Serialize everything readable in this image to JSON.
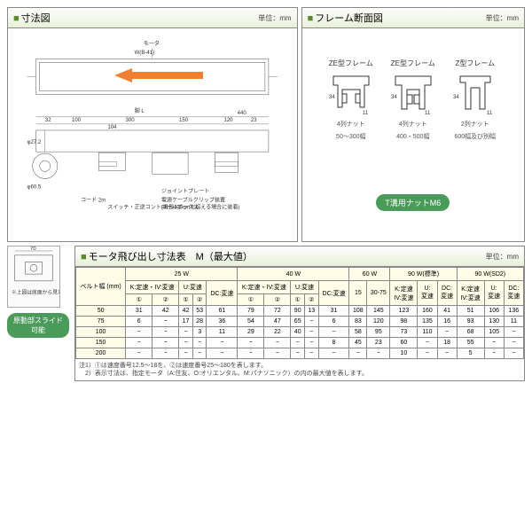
{
  "sections": {
    "dimension": {
      "title": "寸法図",
      "unit": "単位：mm"
    },
    "frame": {
      "title": "フレーム断面図",
      "unit": "単位：mm"
    },
    "motor": {
      "title": "モータ飛び出し寸法表　M（最大値）",
      "unit": "単位：mm"
    }
  },
  "frames": [
    {
      "name": "ZE型フレーム",
      "range": "50～300幅",
      "nut": "4列ナット"
    },
    {
      "name": "ZE型フレーム",
      "range": "400・500幅",
      "nut": "4列ナット"
    },
    {
      "name": "Z型フレーム",
      "range": "600幅及び別幅",
      "nut": "2列ナット"
    }
  ],
  "t_nut": "T溝用ナットM6",
  "slide_badge": "原動部スライド可能",
  "dim_labels": {
    "motor": "モータ",
    "w1": "W(B-41)",
    "l": "脚 L",
    "d": "φ27.2",
    "d2": "φ60.5"
  },
  "dim_numbers": [
    "32",
    "100",
    "300",
    "150",
    "120",
    "23",
    "29",
    "104",
    "440",
    "18",
    "49",
    "9.5",
    "19",
    "40",
    "150"
  ],
  "table": {
    "belt_header": "ベルト幅\n(mm)",
    "power_groups": [
      "25 W",
      "40 W",
      "60 W",
      "90 W(標準)",
      "90 W(SD2)"
    ],
    "sub_headers_a": [
      "K:定速・IV:変速",
      "U:変速",
      "DC:変速"
    ],
    "sub_headers_b": [
      "①",
      "②",
      "①",
      "②"
    ],
    "rows": [
      {
        "belt": "50",
        "cells": [
          "31",
          "42",
          "42",
          "53",
          "61",
          "79",
          "72",
          "90",
          "13",
          "31",
          "108",
          "145",
          "123",
          "160",
          "41",
          "51",
          "106",
          "136"
        ]
      },
      {
        "belt": "75",
        "cells": [
          "6",
          "−",
          "17",
          "28",
          "36",
          "54",
          "47",
          "65",
          "−",
          "6",
          "83",
          "120",
          "98",
          "135",
          "16",
          "93",
          "130",
          "11"
        ]
      },
      {
        "belt": "100",
        "cells": [
          "−",
          "−",
          "−",
          "3",
          "11",
          "29",
          "22",
          "40",
          "−",
          "−",
          "58",
          "95",
          "73",
          "110",
          "−",
          "68",
          "105",
          "−"
        ]
      },
      {
        "belt": "150",
        "cells": [
          "−",
          "−",
          "−",
          "−",
          "−",
          "−",
          "−",
          "−",
          "−",
          "8",
          "45",
          "23",
          "60",
          "−",
          "18",
          "55",
          "−",
          "−"
        ]
      },
      {
        "belt": "200",
        "cells": [
          "−",
          "−",
          "−",
          "−",
          "−",
          "−",
          "−",
          "−",
          "−",
          "−",
          "−",
          "−",
          "10",
          "−",
          "−",
          "5",
          "−",
          "−"
        ]
      }
    ]
  },
  "note": "注1）①は速度番号12.5〜18を、②は速度番号25〜180を表します。\n　2）表示寸法は、指定モータ（A:住友、O:オリエンタル、M:パナソニック）の内の最大値を表します。",
  "colors": {
    "accent": "#5a8a2a",
    "badge": "#4a9b5a",
    "arrow": "#f08030",
    "header_bg": "#e8f0d8",
    "th_bg": "#fffce8"
  }
}
